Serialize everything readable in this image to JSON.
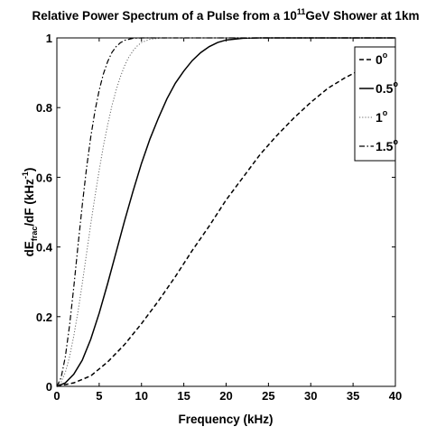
{
  "chart_data": {
    "type": "line",
    "title": {
      "prefix": "Relative Power Spectrum of a Pulse from a 10",
      "superscript": "11",
      "suffix": "GeV Shower at 1km"
    },
    "xlabel": "Frequency (kHz)",
    "ylabel": {
      "base": "dE",
      "subscript": "frac",
      "middle": "/dF (kHz",
      "superscript": "-1",
      "end": ")"
    },
    "xlim": [
      0,
      40
    ],
    "ylim": [
      0,
      1
    ],
    "xticks": [
      0,
      5,
      10,
      15,
      20,
      25,
      30,
      35,
      40
    ],
    "yticks": [
      0,
      0.2,
      0.4,
      0.6,
      0.8,
      1
    ],
    "x_tick_labels": [
      "0",
      "5",
      "10",
      "15",
      "20",
      "25",
      "30",
      "35",
      "40"
    ],
    "y_tick_labels": [
      "0",
      "0.2",
      "0.4",
      "0.6",
      "0.8",
      "1"
    ],
    "grid": false,
    "legend_position": "top-right",
    "series": [
      {
        "name": "0",
        "name_superscript": "o",
        "dash": "dashed",
        "x": [
          0,
          2,
          4,
          6,
          8,
          10,
          12,
          14,
          16,
          18,
          20,
          22,
          24,
          26,
          28,
          30,
          32,
          34,
          36,
          38,
          40
        ],
        "y": [
          0,
          0.01,
          0.03,
          0.07,
          0.12,
          0.18,
          0.245,
          0.315,
          0.39,
          0.46,
          0.535,
          0.6,
          0.665,
          0.72,
          0.77,
          0.815,
          0.855,
          0.885,
          0.91,
          0.93,
          0.945
        ]
      },
      {
        "name": "0.5",
        "name_superscript": "o",
        "dash": "solid",
        "x": [
          0,
          1,
          2,
          3,
          4,
          5,
          6,
          7,
          8,
          9,
          10,
          11,
          12,
          13,
          14,
          15,
          16,
          17,
          18,
          19,
          20,
          22,
          24,
          30,
          40
        ],
        "y": [
          0,
          0.01,
          0.035,
          0.075,
          0.135,
          0.21,
          0.295,
          0.385,
          0.475,
          0.56,
          0.64,
          0.71,
          0.77,
          0.825,
          0.87,
          0.905,
          0.935,
          0.958,
          0.975,
          0.987,
          0.994,
          0.999,
          1,
          1,
          1
        ]
      },
      {
        "name": "1",
        "name_superscript": "o",
        "dash": "dotted",
        "x": [
          0,
          0.5,
          1,
          1.5,
          2,
          2.5,
          3,
          3.5,
          4,
          4.5,
          5,
          5.5,
          6,
          6.5,
          7,
          7.5,
          8,
          8.5,
          9,
          9.5,
          10,
          11,
          12,
          13,
          15,
          40
        ],
        "y": [
          0,
          0.012,
          0.04,
          0.085,
          0.145,
          0.215,
          0.295,
          0.38,
          0.465,
          0.545,
          0.62,
          0.69,
          0.75,
          0.805,
          0.85,
          0.888,
          0.92,
          0.945,
          0.963,
          0.977,
          0.987,
          0.996,
          0.999,
          1,
          1,
          1
        ]
      },
      {
        "name": "1.5",
        "name_superscript": "o",
        "dash": "dash-dot",
        "x": [
          0,
          0.5,
          1,
          1.5,
          2,
          2.5,
          3,
          3.5,
          4,
          4.5,
          5,
          5.5,
          6,
          6.5,
          7,
          7.5,
          8,
          9,
          10,
          40
        ],
        "y": [
          0,
          0.025,
          0.085,
          0.175,
          0.285,
          0.405,
          0.52,
          0.625,
          0.715,
          0.79,
          0.85,
          0.897,
          0.932,
          0.958,
          0.975,
          0.986,
          0.993,
          0.999,
          1,
          1
        ]
      }
    ]
  }
}
